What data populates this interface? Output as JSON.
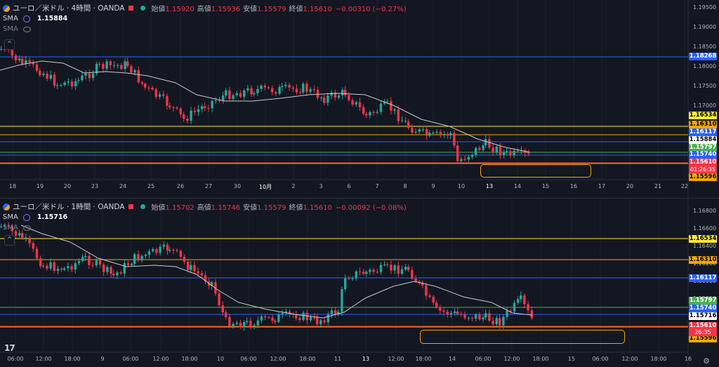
{
  "colors": {
    "up": "#26a69a",
    "down": "#f23645",
    "sma": "#c8c8c8",
    "blue": "#2962ff",
    "orange": "#f7a600",
    "yellow": "#ffeb3b",
    "green": "#4caf50"
  },
  "top": {
    "title": "ユーロ／米ドル · 4時間 · OANDA",
    "ohlc": [
      {
        "k": "始値",
        "v": "1.15920"
      },
      {
        "k": "高値",
        "v": "1.15936"
      },
      {
        "k": "安値",
        "v": "1.15579"
      },
      {
        "k": "終値",
        "v": "1.15610"
      },
      {
        "k": "",
        "v": "−0.00310 (−0.27%)"
      }
    ],
    "sma_label": "SMA",
    "sma_value": "1.15884",
    "sma2_label": "SMA",
    "price_axis": [
      "1.19500",
      "1.19000",
      "1.18500",
      "1.18000",
      "1.17500",
      "1.17000",
      "1.16500",
      "1.16000",
      "1.15500"
    ],
    "price_tags": [
      {
        "text": "1.18268",
        "bg": "#2962ff",
        "fg": "#ffffff"
      },
      {
        "text": "1.16534",
        "bg": "#ffeb3b",
        "fg": "#000000"
      },
      {
        "text": "1.16310",
        "bg": "#f7a600",
        "fg": "#000000"
      },
      {
        "text": "1.16117",
        "bg": "#2962ff",
        "fg": "#ffffff"
      },
      {
        "text": "1.15884",
        "bg": "#ffffff",
        "fg": "#000000"
      },
      {
        "text": "1.15797",
        "bg": "#4caf50",
        "fg": "#ffffff"
      },
      {
        "text": "1.15740",
        "bg": "#2962ff",
        "fg": "#ffffff"
      },
      {
        "text": "1.15610",
        "bg": "#f23645",
        "fg": "#ffffff"
      },
      {
        "text": "1.15596",
        "bg": "#f7a600",
        "fg": "#000000"
      }
    ],
    "timer": "01:26:35",
    "time_axis": [
      "18",
      "19",
      "20",
      "23",
      "24",
      "25",
      "26",
      "27",
      "30",
      "10月",
      "2",
      "3",
      "6",
      "7",
      "8",
      "9",
      "10",
      "13",
      "14",
      "15",
      "16",
      "17",
      "20",
      "21",
      "22"
    ]
  },
  "bottom": {
    "title": "ユーロ／米ドル · 1時間 · OANDA",
    "ohlc": [
      {
        "k": "始値",
        "v": "1.15702"
      },
      {
        "k": "高値",
        "v": "1.15746"
      },
      {
        "k": "安値",
        "v": "1.15579"
      },
      {
        "k": "終値",
        "v": "1.15610"
      },
      {
        "k": "",
        "v": "−0.00092 (−0.08%)"
      }
    ],
    "sma_label": "SMA",
    "sma_value": "1.15716",
    "sma2_label": "SMA",
    "price_axis": [
      "1.16800",
      "1.16600",
      "1.16400",
      "1.16200",
      "1.16000",
      "1.15800",
      "1.15600",
      "1.15400"
    ],
    "price_tags": [
      {
        "text": "1.16534",
        "bg": "#ffeb3b",
        "fg": "#000000"
      },
      {
        "text": "1.16310",
        "bg": "#f7a600",
        "fg": "#000000"
      },
      {
        "text": "1.16117",
        "bg": "#2962ff",
        "fg": "#ffffff"
      },
      {
        "text": "1.15797",
        "bg": "#4caf50",
        "fg": "#ffffff"
      },
      {
        "text": "1.15740",
        "bg": "#2962ff",
        "fg": "#ffffff"
      },
      {
        "text": "1.15716",
        "bg": "#ffffff",
        "fg": "#000000"
      },
      {
        "text": "1.15610",
        "bg": "#f23645",
        "fg": "#ffffff"
      },
      {
        "text": "1.15596",
        "bg": "#f7a600",
        "fg": "#000000"
      }
    ],
    "timer": "26:35",
    "time_axis": [
      "06:00",
      "12:00",
      "18:00",
      "9",
      "06:00",
      "12:00",
      "18:00",
      "10",
      "06:00",
      "12:00",
      "18:00",
      "11",
      "13",
      "12:00",
      "18:00",
      "14",
      "06:00",
      "12:00",
      "18:00",
      "15",
      "06:00",
      "12:00",
      "18:00",
      "16"
    ]
  }
}
